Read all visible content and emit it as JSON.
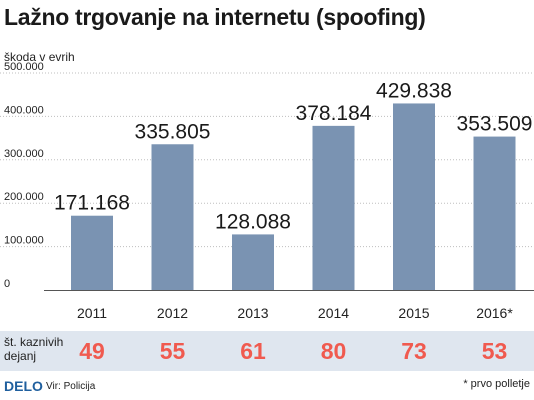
{
  "title": "Lažno trgovanje na internetu (spoofing)",
  "unit_label": "škoda v evrih",
  "chart_data": {
    "type": "bar",
    "title": "Lažno trgovanje na internetu (spoofing)",
    "ylabel": "škoda v evrih",
    "categories": [
      "2011",
      "2012",
      "2013",
      "2014",
      "2015",
      "2016*"
    ],
    "values": [
      171168,
      335805,
      128088,
      378184,
      429838,
      353509
    ],
    "value_labels": [
      "171.168",
      "335.805",
      "128.088",
      "378.184",
      "429.838",
      "353.509"
    ],
    "ylim": [
      0,
      500000
    ],
    "yticks": [
      0,
      100000,
      200000,
      300000,
      400000,
      500000
    ],
    "ytick_labels": [
      "0",
      "100.000",
      "200.000",
      "300.000",
      "400.000",
      "500.000"
    ],
    "grid": true,
    "bar_color": "#7a93b2"
  },
  "cases": {
    "label_line1": "št. kaznivih",
    "label_line2": "dejanj",
    "values": [
      "49",
      "55",
      "61",
      "80",
      "73",
      "53"
    ]
  },
  "footer": {
    "logo": "DELO",
    "source": "Vir: Policija",
    "note": "* prvo polletje"
  },
  "colors": {
    "bar": "#7a93b2",
    "band": "#dfe6ef",
    "cases": "#f05a4f",
    "logo": "#1f5f9e"
  }
}
